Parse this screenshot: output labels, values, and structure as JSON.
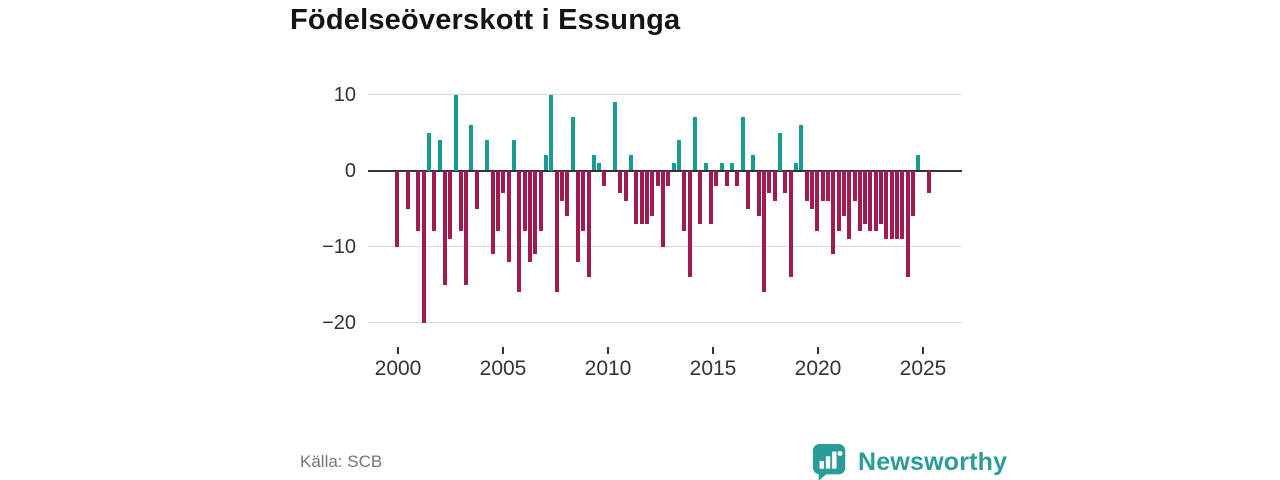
{
  "header": {
    "title": "Födelseöverskott i Essunga"
  },
  "footer": {
    "source_label": "Källa: SCB",
    "brand_name": "Newsworthy"
  },
  "colors": {
    "positive": "#179c94",
    "negative": "#a11a52",
    "axis": "#333333",
    "gridline": "#d9d9d9",
    "brand_teal": "#2a9d98"
  },
  "chart_data": {
    "type": "bar",
    "title": "Födelseöverskott i Essunga",
    "frequency": "quarterly",
    "period_start": "2000-Q1",
    "period_end": "2025-Q1",
    "xlabel": "",
    "ylabel": "",
    "ylim": [
      -21.5,
      11.5
    ],
    "grid": "horizontal",
    "y_ticks": [
      {
        "v": 10,
        "label": "10"
      },
      {
        "v": 0,
        "label": "0"
      },
      {
        "v": -10,
        "label": "−10"
      },
      {
        "v": -20,
        "label": "−20"
      }
    ],
    "x_ticks": [
      {
        "year": "2000"
      },
      {
        "year": "2005"
      },
      {
        "year": "2010"
      },
      {
        "year": "2015"
      },
      {
        "year": "2020"
      },
      {
        "year": "2025"
      }
    ],
    "values": [
      -10,
      0,
      -5,
      0,
      -8,
      -20,
      5,
      -8,
      4,
      -15,
      -9,
      10,
      -8,
      -15,
      6,
      -5,
      0,
      4,
      -11,
      -8,
      -3,
      -12,
      4,
      -16,
      -8,
      -12,
      -11,
      -8,
      2,
      10,
      -16,
      -4,
      -6,
      7,
      -12,
      -8,
      -14,
      2,
      1,
      -2,
      0,
      9,
      -3,
      -4,
      2,
      -7,
      -7,
      -7,
      -6,
      -2,
      -10,
      -2,
      1,
      4,
      -8,
      -14,
      7,
      -7,
      1,
      -7,
      -2,
      1,
      -2,
      1,
      -2,
      7,
      -5,
      2,
      -6,
      -16,
      -3,
      -4,
      5,
      -3,
      -14,
      1,
      6,
      -4,
      -5,
      -8,
      -4,
      -4,
      -11,
      -8,
      -6,
      -9,
      -4,
      -8,
      -7,
      -8,
      -8,
      -7,
      -9,
      -9,
      -9,
      -9,
      -14,
      -6,
      2,
      0,
      -3
    ]
  }
}
